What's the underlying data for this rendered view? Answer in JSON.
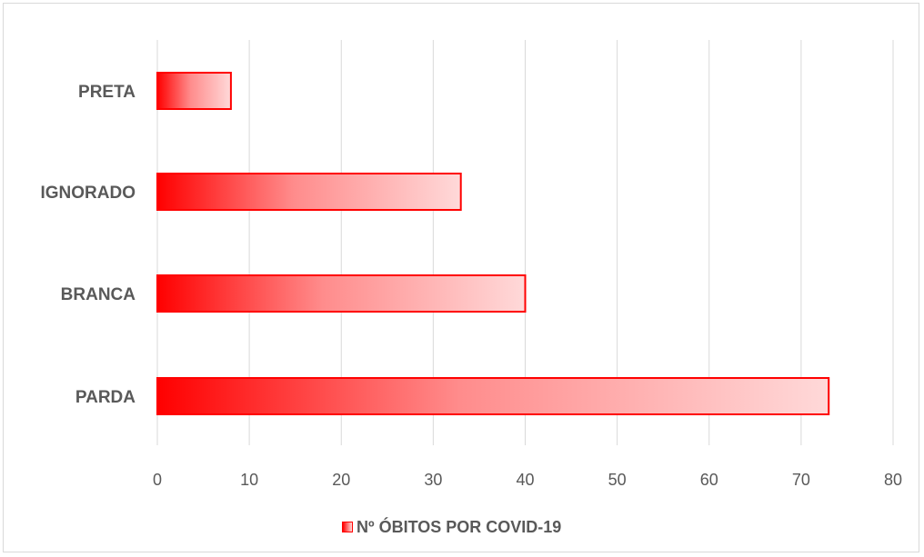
{
  "chart_data": {
    "type": "bar",
    "orientation": "horizontal",
    "categories": [
      "PRETA",
      "IGNORADO",
      "BRANCA",
      "PARDA"
    ],
    "series": [
      {
        "name": "Nº ÓBITOS POR COVID-19",
        "values": [
          8,
          33,
          40,
          73
        ]
      }
    ],
    "xlim": [
      0,
      80
    ],
    "ticks": [
      0,
      10,
      20,
      30,
      40,
      50,
      60,
      70,
      80
    ],
    "grid": true,
    "legend_position": "bottom",
    "colors": {
      "bar_fill_start": "#ff0000",
      "bar_fill_end": "#ffd9d9",
      "bar_border": "#ff0000",
      "grid": "#d9d9d9",
      "text": "#595959"
    }
  }
}
